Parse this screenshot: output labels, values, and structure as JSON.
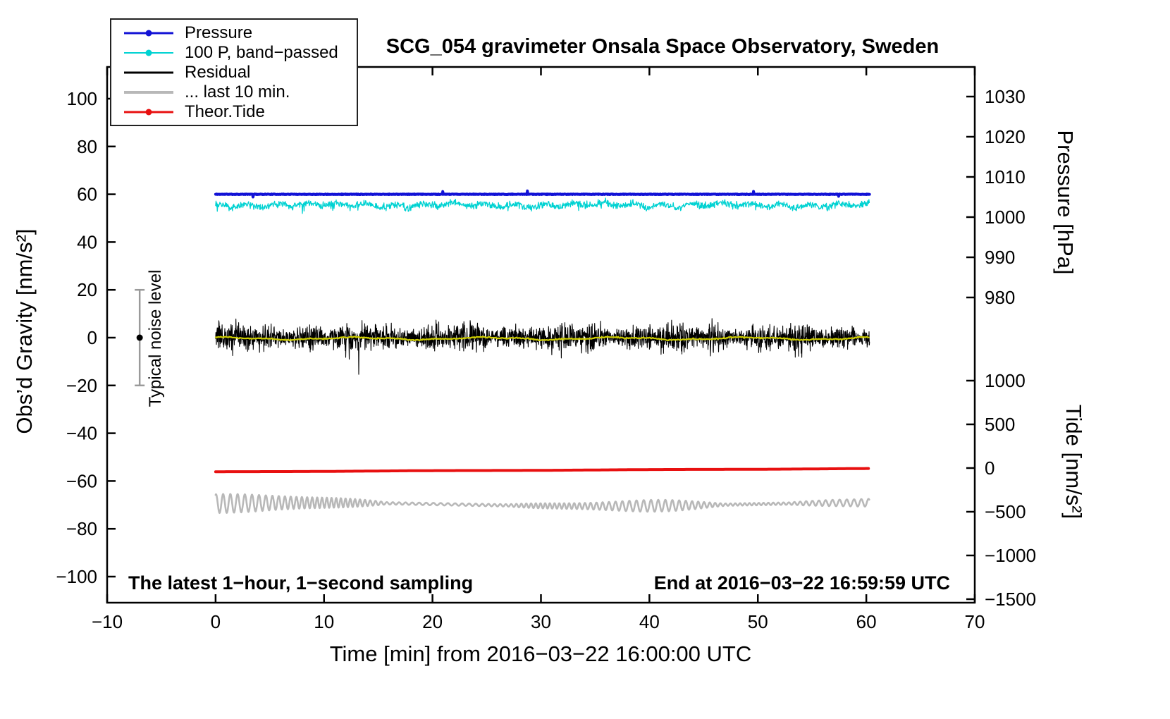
{
  "title": "SCG_054 gravimeter Onsala Space Observatory, Sweden",
  "axes": {
    "x": {
      "label": "Time [min] from 2016−03−22 16:00:00 UTC",
      "min": -10,
      "max": 70,
      "ticks": [
        -10,
        0,
        10,
        20,
        30,
        40,
        50,
        60,
        70
      ],
      "tick_labels": [
        "−10",
        "0",
        "10",
        "20",
        "30",
        "40",
        "50",
        "60",
        "70"
      ]
    },
    "y_left": {
      "label": "Obs’d Gravity [nm/s²]",
      "min": -100,
      "max": 100,
      "ticks": [
        100,
        80,
        60,
        40,
        20,
        0,
        -20,
        -40,
        -60,
        -80,
        -100
      ],
      "tick_labels": [
        "100",
        "80",
        "60",
        "40",
        "20",
        "0",
        "−20",
        "−40",
        "−60",
        "−80",
        "−100"
      ]
    },
    "y_right_pressure": {
      "label": "Pressure [hPa]",
      "ticks": [
        1030,
        1020,
        1010,
        1000,
        990,
        980
      ],
      "tick_labels": [
        "1030",
        "1020",
        "1010",
        "1000",
        "990",
        "980"
      ]
    },
    "y_right_tide": {
      "label": "Tide [nm/s²]",
      "ticks": [
        1000,
        500,
        0,
        -500,
        -1000,
        -1500
      ],
      "tick_labels": [
        "1000",
        "500",
        "0",
        "−500",
        "−1000",
        "−1500"
      ]
    }
  },
  "legend": {
    "items": [
      {
        "label": "Pressure",
        "color": "#1212d6",
        "marker": true,
        "thickness": 3
      },
      {
        "label": "100 P, band−passed",
        "color": "#00d2d2",
        "marker": true,
        "thickness": 2
      },
      {
        "label": "Residual",
        "color": "#000000",
        "marker": false,
        "thickness": 3
      },
      {
        "label": "... last 10 min.",
        "color": "#b8b8b8",
        "marker": false,
        "thickness": 4
      },
      {
        "label": "Theor.Tide",
        "color": "#e81010",
        "marker": true,
        "thickness": 3
      }
    ]
  },
  "annotations": {
    "noise_label": "Typical noise level",
    "sampling": "The latest 1−hour, 1−second sampling",
    "end_time": "End at 2016−03−22 16:59:59 UTC"
  },
  "chart_data": {
    "type": "line",
    "title": "SCG_054 gravimeter Onsala Space Observatory, Sweden",
    "xlabel": "Time [min] from 2016−03−22 16:00:00 UTC",
    "x_range": [
      -10,
      70
    ],
    "data_x_range_min": [
      0,
      60.3
    ],
    "y_left_range": [
      -100,
      100
    ],
    "pressure_axis_range": [
      980,
      1030
    ],
    "tide_axis_range": [
      -1500,
      1000
    ],
    "grid": false,
    "legend_position": "top-left",
    "noise_bar": {
      "x": -7,
      "center": 0,
      "half_range": 20
    },
    "series": [
      {
        "name": "Pressure",
        "axis": "pressure_hPa",
        "color": "#1212d6",
        "approx_constant_hPa": 1006,
        "gravity_scale_level": 60,
        "gen": {
          "seed": 11,
          "step": 0.05,
          "base": 60,
          "noise": 0.12,
          "spike_p": 0.004,
          "spike_amp": 1.2
        }
      },
      {
        "name": "100 P, band−passed",
        "axis": "gravity_nm_s2",
        "color": "#00d2d2",
        "mean": 55.5,
        "typical_range": [
          53,
          58
        ],
        "spike_extremes": [
          50,
          58.5
        ],
        "gen": {
          "seed": 22,
          "step": 0.04,
          "base": 55.5,
          "noise": 0.95,
          "slow_amp": 0.7,
          "spike_p": 0.008,
          "spike_amp": 3.2
        }
      },
      {
        "name": "Residual",
        "axis": "gravity_nm_s2",
        "color": "#000000",
        "mean": 0,
        "typical_range": [
          -5,
          5
        ],
        "burst_extremes": [
          -12,
          12
        ],
        "gen": {
          "seed": 33,
          "step": 0.025,
          "base": 0,
          "amp": 1.5,
          "spike_p": 0.003
        }
      },
      {
        "name": "Residual smoothed (unlabeled yellow)",
        "axis": "gravity_nm_s2",
        "color": "#cdcd00",
        "mean": -0.4,
        "gen": {
          "seed": 44,
          "step": 0.08,
          "base": -0.35
        }
      },
      {
        "name": "Theor.Tide",
        "axis": "tide_nm_s2",
        "color": "#e81010",
        "gravity_scale_start": -56.1,
        "gravity_scale_end": -54.8,
        "tide_axis_start": -25,
        "tide_axis_end": -12,
        "gen": {
          "seed": 55,
          "step": 0.2,
          "start": -56.15,
          "rise": 1.35
        }
      },
      {
        "name": "... last 10 min.",
        "axis": "gravity_nm_s2",
        "color": "#b8b8b8",
        "mean": -70,
        "oscillation_amplitude_range": [
          1,
          6
        ],
        "oscillation_period_min": 0.55,
        "gen": {
          "seed": 66,
          "step": 0.03,
          "base": -69.8
        }
      }
    ]
  }
}
